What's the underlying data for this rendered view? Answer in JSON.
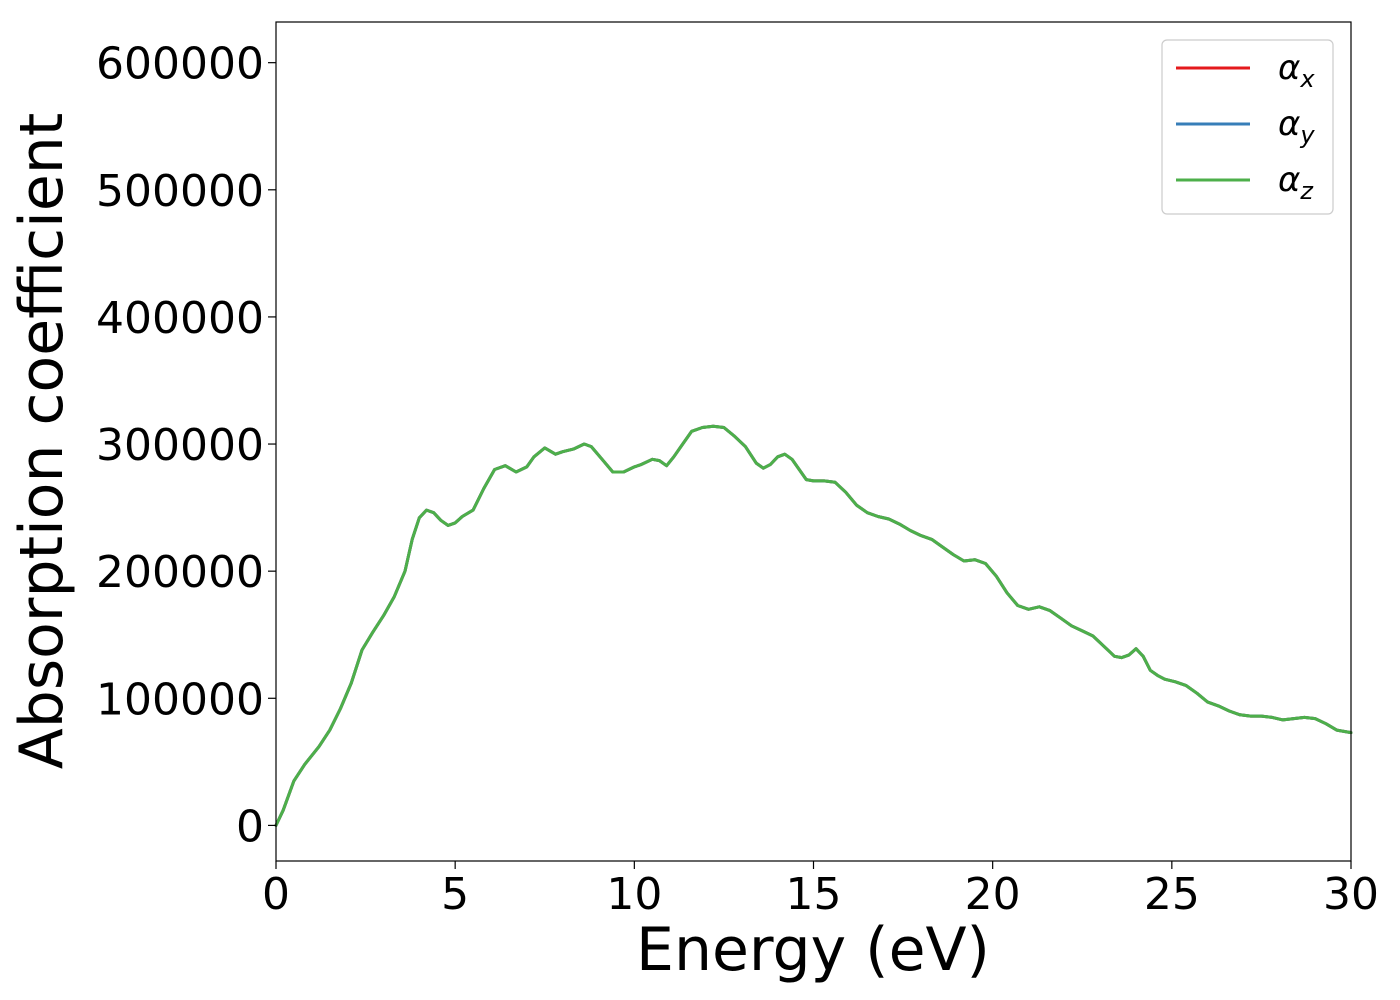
{
  "chart_data": {
    "type": "line",
    "title": "",
    "xlabel": "Energy (eV)",
    "ylabel": "Absorption coefficient",
    "xlim": [
      0,
      30
    ],
    "ylim": [
      -28000,
      632000
    ],
    "xticks": [
      0,
      5,
      10,
      15,
      20,
      25,
      30
    ],
    "yticks": [
      0,
      100000,
      200000,
      300000,
      400000,
      500000,
      600000
    ],
    "grid": false,
    "legend_position": "top-right",
    "series": [
      {
        "name": "α_x",
        "symbol": "α",
        "subscript": "x",
        "color": "#e41a1c",
        "x": [
          0,
          0.2,
          0.5,
          0.8,
          1.2,
          1.5,
          1.8,
          2.1,
          2.4,
          2.7,
          3.0,
          3.3,
          3.6,
          3.8,
          4.0,
          4.2,
          4.4,
          4.6,
          4.8,
          5.0,
          5.2,
          5.5,
          5.8,
          6.1,
          6.4,
          6.7,
          7.0,
          7.2,
          7.5,
          7.8,
          8.0,
          8.3,
          8.6,
          8.8,
          9.1,
          9.4,
          9.7,
          10.0,
          10.2,
          10.5,
          10.7,
          10.9,
          11.1,
          11.3,
          11.6,
          11.9,
          12.2,
          12.5,
          12.8,
          13.1,
          13.4,
          13.6,
          13.8,
          14.0,
          14.2,
          14.4,
          14.6,
          14.8,
          15.0,
          15.3,
          15.6,
          15.9,
          16.2,
          16.5,
          16.8,
          17.1,
          17.4,
          17.7,
          18.0,
          18.3,
          18.6,
          18.9,
          19.2,
          19.5,
          19.8,
          20.1,
          20.4,
          20.7,
          21.0,
          21.3,
          21.6,
          21.9,
          22.2,
          22.5,
          22.8,
          23.1,
          23.4,
          23.6,
          23.8,
          24.0,
          24.2,
          24.4,
          24.6,
          24.8,
          25.1,
          25.4,
          25.7,
          26.0,
          26.3,
          26.6,
          26.9,
          27.2,
          27.5,
          27.8,
          28.1,
          28.4,
          28.7,
          29.0,
          29.3,
          29.6,
          30.0
        ],
        "values": [
          0,
          12000,
          35000,
          48000,
          62000,
          75000,
          92000,
          112000,
          138000,
          152000,
          165000,
          180000,
          200000,
          225000,
          242000,
          248000,
          246000,
          240000,
          236000,
          238000,
          243000,
          248000,
          265000,
          280000,
          283000,
          278000,
          282000,
          290000,
          297000,
          292000,
          294000,
          296000,
          300000,
          298000,
          288000,
          278000,
          278000,
          282000,
          284000,
          288000,
          287000,
          283000,
          290000,
          298000,
          310000,
          313000,
          314000,
          313000,
          306000,
          298000,
          285000,
          281000,
          284000,
          290000,
          292000,
          288000,
          280000,
          272000,
          271000,
          271000,
          270000,
          262000,
          252000,
          246000,
          243000,
          241000,
          237000,
          232000,
          228000,
          225000,
          219000,
          213000,
          208000,
          209000,
          206000,
          196000,
          183000,
          173000,
          170000,
          172000,
          169000,
          163000,
          157000,
          153000,
          149000,
          141000,
          133000,
          132000,
          134000,
          139000,
          133000,
          122000,
          118000,
          115000,
          113000,
          110000,
          104000,
          97000,
          94000,
          90000,
          87000,
          86000,
          86000,
          85000,
          83000,
          84000,
          85000,
          84000,
          80000,
          75000,
          73000
        ]
      },
      {
        "name": "α_y",
        "symbol": "α",
        "subscript": "y",
        "color": "#377eb8",
        "x": [
          0,
          0.2,
          0.5,
          0.8,
          1.2,
          1.5,
          1.8,
          2.1,
          2.4,
          2.7,
          3.0,
          3.3,
          3.6,
          3.8,
          4.0,
          4.2,
          4.4,
          4.6,
          4.8,
          5.0,
          5.2,
          5.5,
          5.8,
          6.1,
          6.4,
          6.7,
          7.0,
          7.2,
          7.5,
          7.8,
          8.0,
          8.3,
          8.6,
          8.8,
          9.1,
          9.4,
          9.7,
          10.0,
          10.2,
          10.5,
          10.7,
          10.9,
          11.1,
          11.3,
          11.6,
          11.9,
          12.2,
          12.5,
          12.8,
          13.1,
          13.4,
          13.6,
          13.8,
          14.0,
          14.2,
          14.4,
          14.6,
          14.8,
          15.0,
          15.3,
          15.6,
          15.9,
          16.2,
          16.5,
          16.8,
          17.1,
          17.4,
          17.7,
          18.0,
          18.3,
          18.6,
          18.9,
          19.2,
          19.5,
          19.8,
          20.1,
          20.4,
          20.7,
          21.0,
          21.3,
          21.6,
          21.9,
          22.2,
          22.5,
          22.8,
          23.1,
          23.4,
          23.6,
          23.8,
          24.0,
          24.2,
          24.4,
          24.6,
          24.8,
          25.1,
          25.4,
          25.7,
          26.0,
          26.3,
          26.6,
          26.9,
          27.2,
          27.5,
          27.8,
          28.1,
          28.4,
          28.7,
          29.0,
          29.3,
          29.6,
          30.0
        ],
        "values": [
          0,
          12000,
          35000,
          48000,
          62000,
          75000,
          92000,
          112000,
          138000,
          152000,
          165000,
          180000,
          200000,
          225000,
          242000,
          248000,
          246000,
          240000,
          236000,
          238000,
          243000,
          248000,
          265000,
          280000,
          283000,
          278000,
          282000,
          290000,
          297000,
          292000,
          294000,
          296000,
          300000,
          298000,
          288000,
          278000,
          278000,
          282000,
          284000,
          288000,
          287000,
          283000,
          290000,
          298000,
          310000,
          313000,
          314000,
          313000,
          306000,
          298000,
          285000,
          281000,
          284000,
          290000,
          292000,
          288000,
          280000,
          272000,
          271000,
          271000,
          270000,
          262000,
          252000,
          246000,
          243000,
          241000,
          237000,
          232000,
          228000,
          225000,
          219000,
          213000,
          208000,
          209000,
          206000,
          196000,
          183000,
          173000,
          170000,
          172000,
          169000,
          163000,
          157000,
          153000,
          149000,
          141000,
          133000,
          132000,
          134000,
          139000,
          133000,
          122000,
          118000,
          115000,
          113000,
          110000,
          104000,
          97000,
          94000,
          90000,
          87000,
          86000,
          86000,
          85000,
          83000,
          84000,
          85000,
          84000,
          80000,
          75000,
          73000
        ]
      },
      {
        "name": "α_z",
        "symbol": "α",
        "subscript": "z",
        "color": "#4daf4a",
        "x": [
          0,
          0.2,
          0.5,
          0.8,
          1.2,
          1.5,
          1.8,
          2.1,
          2.4,
          2.7,
          3.0,
          3.3,
          3.6,
          3.8,
          4.0,
          4.2,
          4.4,
          4.6,
          4.8,
          5.0,
          5.2,
          5.5,
          5.8,
          6.1,
          6.4,
          6.7,
          7.0,
          7.2,
          7.5,
          7.8,
          8.0,
          8.3,
          8.6,
          8.8,
          9.1,
          9.4,
          9.7,
          10.0,
          10.2,
          10.5,
          10.7,
          10.9,
          11.1,
          11.3,
          11.6,
          11.9,
          12.2,
          12.5,
          12.8,
          13.1,
          13.4,
          13.6,
          13.8,
          14.0,
          14.2,
          14.4,
          14.6,
          14.8,
          15.0,
          15.3,
          15.6,
          15.9,
          16.2,
          16.5,
          16.8,
          17.1,
          17.4,
          17.7,
          18.0,
          18.3,
          18.6,
          18.9,
          19.2,
          19.5,
          19.8,
          20.1,
          20.4,
          20.7,
          21.0,
          21.3,
          21.6,
          21.9,
          22.2,
          22.5,
          22.8,
          23.1,
          23.4,
          23.6,
          23.8,
          24.0,
          24.2,
          24.4,
          24.6,
          24.8,
          25.1,
          25.4,
          25.7,
          26.0,
          26.3,
          26.6,
          26.9,
          27.2,
          27.5,
          27.8,
          28.1,
          28.4,
          28.7,
          29.0,
          29.3,
          29.6,
          30.0
        ],
        "values": [
          0,
          12000,
          35000,
          48000,
          62000,
          75000,
          92000,
          112000,
          138000,
          152000,
          165000,
          180000,
          200000,
          225000,
          242000,
          248000,
          246000,
          240000,
          236000,
          238000,
          243000,
          248000,
          265000,
          280000,
          283000,
          278000,
          282000,
          290000,
          297000,
          292000,
          294000,
          296000,
          300000,
          298000,
          288000,
          278000,
          278000,
          282000,
          284000,
          288000,
          287000,
          283000,
          290000,
          298000,
          310000,
          313000,
          314000,
          313000,
          306000,
          298000,
          285000,
          281000,
          284000,
          290000,
          292000,
          288000,
          280000,
          272000,
          271000,
          271000,
          270000,
          262000,
          252000,
          246000,
          243000,
          241000,
          237000,
          232000,
          228000,
          225000,
          219000,
          213000,
          208000,
          209000,
          206000,
          196000,
          183000,
          173000,
          170000,
          172000,
          169000,
          163000,
          157000,
          153000,
          149000,
          141000,
          133000,
          132000,
          134000,
          139000,
          133000,
          122000,
          118000,
          115000,
          113000,
          110000,
          104000,
          97000,
          94000,
          90000,
          87000,
          86000,
          86000,
          85000,
          83000,
          84000,
          85000,
          84000,
          80000,
          75000,
          73000
        ]
      }
    ]
  }
}
